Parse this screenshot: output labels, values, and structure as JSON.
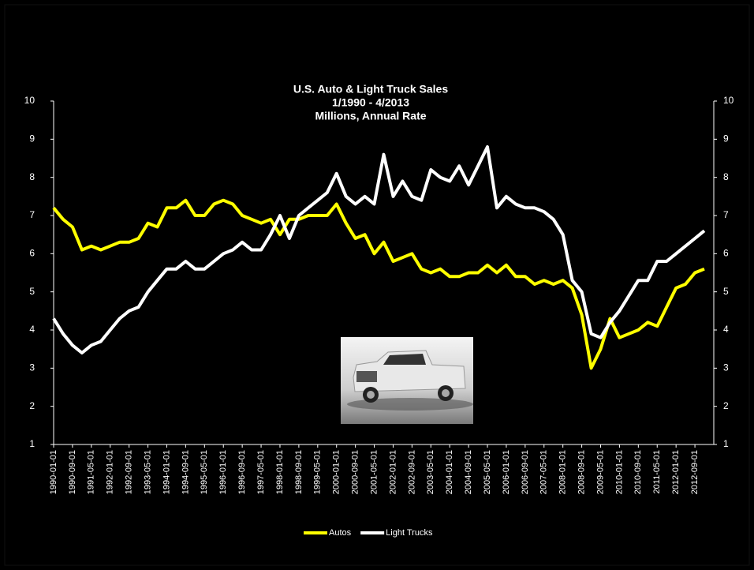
{
  "chart_data": {
    "type": "line",
    "title": "U.S. Auto & Light Truck  Sales",
    "subtitle": "1/1990 - 4/2013",
    "unit_label": "Millions, Annual  Rate",
    "categories": [
      "1990-01-01",
      null,
      "1990-09-01",
      null,
      "1991-05-01",
      null,
      "1992-01-01",
      null,
      "1992-09-01",
      null,
      "1993-05-01",
      null,
      "1994-01-01",
      null,
      "1994-09-01",
      null,
      "1995-05-01",
      null,
      "1996-01-01",
      null,
      "1996-09-01",
      null,
      "1997-05-01",
      null,
      "1998-01-01",
      null,
      "1998-09-01",
      null,
      "1999-05-01",
      null,
      "2000-01-01",
      null,
      "2000-09-01",
      null,
      "2001-05-01",
      null,
      "2002-01-01",
      null,
      "2002-09-01",
      null,
      "2003-05-01",
      null,
      "2004-01-01",
      null,
      "2004-09-01",
      null,
      "2005-05-01",
      null,
      "2006-01-01",
      null,
      "2006-09-01",
      null,
      "2007-05-01",
      null,
      "2008-01-01",
      null,
      "2008-09-01",
      null,
      "2009-05-01",
      null,
      "2010-01-01",
      null,
      "2010-09-01",
      null,
      "2011-05-01",
      null,
      "2012-01-01",
      null,
      "2012-09-01",
      null
    ],
    "series": [
      {
        "name": "Autos",
        "color": "#ffff00",
        "values": [
          7.2,
          6.9,
          6.7,
          6.1,
          6.2,
          6.1,
          6.2,
          6.3,
          6.3,
          6.4,
          6.8,
          6.7,
          7.2,
          7.2,
          7.4,
          7.0,
          7.0,
          7.3,
          7.4,
          7.3,
          7.0,
          6.9,
          6.8,
          6.9,
          6.5,
          6.9,
          6.9,
          7.0,
          7.0,
          7.0,
          7.3,
          6.8,
          6.4,
          6.5,
          6.0,
          6.3,
          5.8,
          5.9,
          6.0,
          5.6,
          5.5,
          5.6,
          5.4,
          5.4,
          5.5,
          5.5,
          5.7,
          5.5,
          5.7,
          5.4,
          5.4,
          5.2,
          5.3,
          5.2,
          5.3,
          5.1,
          4.4,
          3.0,
          3.5,
          4.3,
          3.8,
          3.9,
          4.0,
          4.2,
          4.1,
          4.6,
          5.1,
          5.2,
          5.5,
          5.6
        ]
      },
      {
        "name": "Light Trucks",
        "color": "#ffffff",
        "values": [
          4.3,
          3.9,
          3.6,
          3.4,
          3.6,
          3.7,
          4.0,
          4.3,
          4.5,
          4.6,
          5.0,
          5.3,
          5.6,
          5.6,
          5.8,
          5.6,
          5.6,
          5.8,
          6.0,
          6.1,
          6.3,
          6.1,
          6.1,
          6.5,
          7.0,
          6.4,
          7.0,
          7.2,
          7.4,
          7.6,
          8.1,
          7.5,
          7.3,
          7.5,
          7.3,
          8.6,
          7.5,
          7.9,
          7.5,
          7.4,
          8.2,
          8.0,
          7.9,
          8.3,
          7.8,
          8.3,
          8.8,
          7.2,
          7.5,
          7.3,
          7.2,
          7.2,
          7.1,
          6.9,
          6.5,
          5.3,
          5.0,
          3.9,
          3.8,
          4.2,
          4.5,
          4.9,
          5.3,
          5.3,
          5.8,
          5.8,
          6.0,
          6.2,
          6.4,
          6.6
        ]
      }
    ],
    "ylim": [
      1,
      10
    ],
    "yticks": [
      1,
      2,
      3,
      4,
      5,
      6,
      7,
      8,
      9,
      10
    ],
    "y2lim": [
      1,
      10
    ],
    "y2ticks": [
      1,
      2,
      3,
      4,
      5,
      6,
      7,
      8,
      9,
      10
    ],
    "legend": "bottom"
  }
}
